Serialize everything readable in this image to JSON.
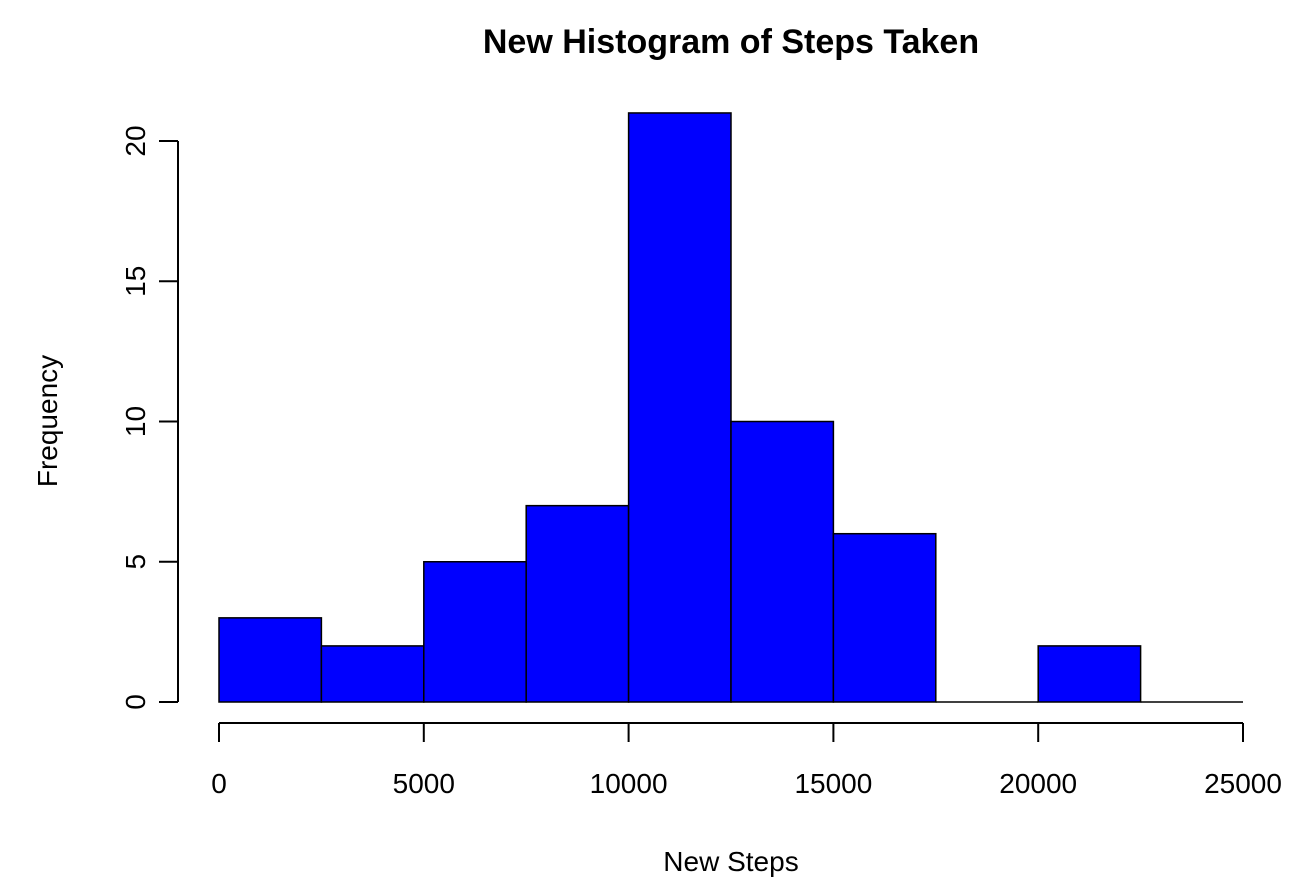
{
  "chart_data": {
    "type": "bar",
    "subtype": "histogram",
    "title": "New Histogram of Steps Taken",
    "xlabel": "New Steps",
    "ylabel": "Frequency",
    "bin_edges": [
      0,
      2500,
      5000,
      7500,
      10000,
      12500,
      15000,
      17500,
      20000,
      22500,
      25000
    ],
    "values": [
      3,
      2,
      5,
      7,
      21,
      10,
      6,
      0,
      2,
      0
    ],
    "xlim": [
      0,
      25000
    ],
    "ylim": [
      0,
      20
    ],
    "x_ticks": [
      0,
      5000,
      10000,
      15000,
      20000,
      25000
    ],
    "x_tick_labels": [
      "0",
      "5000",
      "10000",
      "15000",
      "20000",
      "25000"
    ],
    "y_ticks": [
      0,
      5,
      10,
      15,
      20
    ],
    "y_tick_labels": [
      "0",
      "5",
      "10",
      "15",
      "20"
    ],
    "grid": false,
    "legend": "none",
    "bar_color": "#0000ff",
    "edge_color": "#000000"
  }
}
